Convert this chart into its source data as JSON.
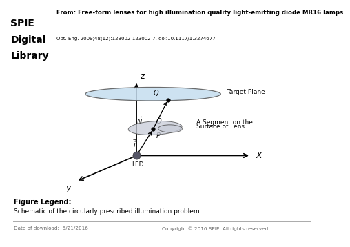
{
  "title_line1": "From: Free-form lenses for high illumination quality light-emitting diode MR16 lamps",
  "subtitle": "Opt. Eng. 2009;48(12):123002-123002-7. doi:10.1117/1.3274677",
  "figure_legend_title": "Figure Legend:",
  "figure_legend_text": "Schematic of the circularly prescribed illumination problem.",
  "footer_left": "Date of download:  6/21/2016",
  "footer_right": "Copyright © 2016 SPIE. All rights reserved.",
  "bg_color": "#ffffff",
  "ellipse_fill": "#c5ddef",
  "lens_fill": "#c8ccd8",
  "led_color": "#555566",
  "spie_red": "#cc0000"
}
